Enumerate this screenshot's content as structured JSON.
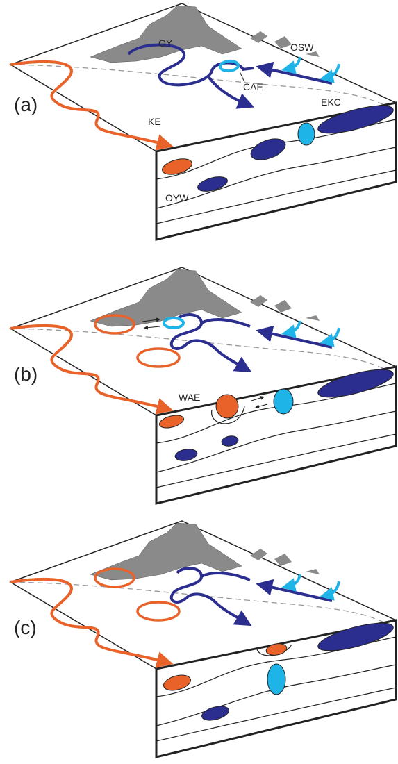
{
  "panels": [
    {
      "label": "(a)",
      "labels": [
        "OY",
        "OSW",
        "CAE",
        "EKC",
        "KE",
        "OYW"
      ]
    },
    {
      "label": "(b)",
      "labels": [
        "WAE"
      ]
    },
    {
      "label": "(c)"
    }
  ]
}
